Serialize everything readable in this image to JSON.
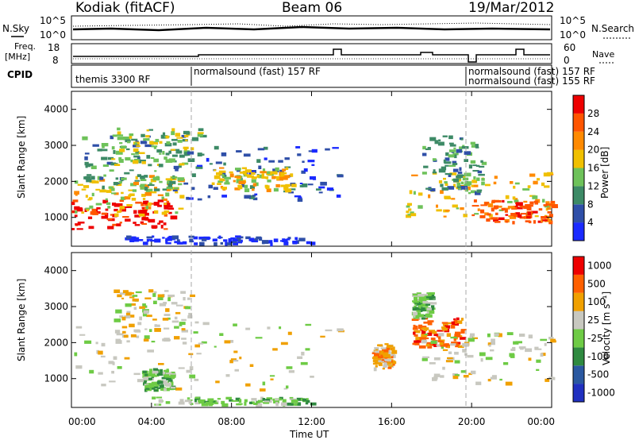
{
  "header": {
    "station": "Kodiak (fitACF)",
    "beam": "Beam 06",
    "date": "19/Mar/2012"
  },
  "strips": {
    "nsky_label": "N.Sky",
    "nsearch_label": "N.Search",
    "noise_ticks_left": [
      "10^5",
      "10^0"
    ],
    "noise_ticks_right": [
      "10^5",
      "10^0"
    ],
    "freq_label": "Freq.",
    "freq_unit": "[MHz]",
    "freq_ticks": [
      "18",
      "8"
    ],
    "nave_label": "Nave",
    "nave_ticks": [
      "60",
      "0"
    ],
    "cpid_label": "CPID",
    "cpid_segments": [
      {
        "label": "themis 3300 RF"
      },
      {
        "label": "normalsound (fast) 157 RF"
      },
      {
        "label": "normalsound (fast) 157 RF"
      },
      {
        "label": "normalsound (fast) 155 RF"
      }
    ]
  },
  "x_axis": {
    "label": "Time UT",
    "ticks": [
      "00:00",
      "04:00",
      "08:00",
      "12:00",
      "16:00",
      "20:00",
      "00:00"
    ]
  },
  "chart_data": [
    {
      "type": "heatmap",
      "ylabel": "Slant Range [km]",
      "y_ticks": [
        "1000",
        "2000",
        "3000",
        "4000"
      ],
      "ylim": [
        200,
        4500
      ],
      "xlim_hours": [
        0,
        24
      ],
      "colorbar_label": "Power [dB]",
      "colorbar_ticks": [
        "4",
        "8",
        "12",
        "16",
        "20",
        "24",
        "28"
      ],
      "colorbar_colors": [
        "#1a2aff",
        "#2f4fa8",
        "#3d8a66",
        "#6ec25a",
        "#f0c000",
        "#ff8a00",
        "#ff5500",
        "#ee0000"
      ],
      "bands": [
        {
          "t0": 0.0,
          "t1": 5.0,
          "r0": 700,
          "r1": 1500,
          "level": 7
        },
        {
          "t0": 0.0,
          "t1": 5.5,
          "r0": 1100,
          "r1": 2200,
          "level": 4
        },
        {
          "t0": 0.5,
          "t1": 5.5,
          "r0": 1800,
          "r1": 3300,
          "level": 2
        },
        {
          "t0": 1.5,
          "t1": 6.5,
          "r0": 2400,
          "r1": 3500,
          "level": 3
        },
        {
          "t0": 5.0,
          "t1": 13.5,
          "r0": 1500,
          "r1": 3000,
          "level": 1
        },
        {
          "t0": 7.0,
          "t1": 11.0,
          "r0": 1800,
          "r1": 2400,
          "level": 4
        },
        {
          "t0": 16.5,
          "t1": 24.0,
          "r0": 1000,
          "r1": 2300,
          "level": 4
        },
        {
          "t0": 17.5,
          "t1": 20.5,
          "r0": 1700,
          "r1": 3300,
          "level": 2
        },
        {
          "t0": 20.0,
          "t1": 24.0,
          "r0": 900,
          "r1": 1500,
          "level": 6
        },
        {
          "t0": 2.5,
          "t1": 12.0,
          "r0": 300,
          "r1": 500,
          "level": 0
        }
      ]
    },
    {
      "type": "heatmap",
      "ylabel": "Slant Range [km]",
      "y_ticks": [
        "1000",
        "2000",
        "3000",
        "4000"
      ],
      "ylim": [
        200,
        4500
      ],
      "xlim_hours": [
        0,
        24
      ],
      "colorbar_label": "Velocity [m s⁻¹]",
      "colorbar_ticks": [
        "1000",
        "500",
        "100",
        "25",
        "-25",
        "-100",
        "-500",
        "-1000"
      ],
      "colorbar_colors": [
        "#2030c0",
        "#2a58a0",
        "#2f8a40",
        "#6ecb45",
        "#c8c8c0",
        "#f0a000",
        "#ff6000",
        "#ee0000"
      ],
      "bands": [
        {
          "t0": 0.0,
          "t1": 13.5,
          "r0": 700,
          "r1": 2600,
          "level": 4
        },
        {
          "t0": 2.0,
          "t1": 6.0,
          "r0": 2000,
          "r1": 3500,
          "level": 4
        },
        {
          "t0": 3.5,
          "t1": 5.0,
          "r0": 700,
          "r1": 1300,
          "level": 3
        },
        {
          "t0": 4.0,
          "t1": 12.0,
          "r0": 300,
          "r1": 500,
          "level": 3
        },
        {
          "t0": 15.0,
          "t1": 16.0,
          "r0": 1300,
          "r1": 2000,
          "level": 5
        },
        {
          "t0": 17.0,
          "t1": 19.5,
          "r0": 1900,
          "r1": 2700,
          "level": 6
        },
        {
          "t0": 17.5,
          "t1": 24.0,
          "r0": 900,
          "r1": 2300,
          "level": 4
        },
        {
          "t0": 17.0,
          "t1": 18.0,
          "r0": 2700,
          "r1": 3400,
          "level": 3
        }
      ]
    }
  ]
}
